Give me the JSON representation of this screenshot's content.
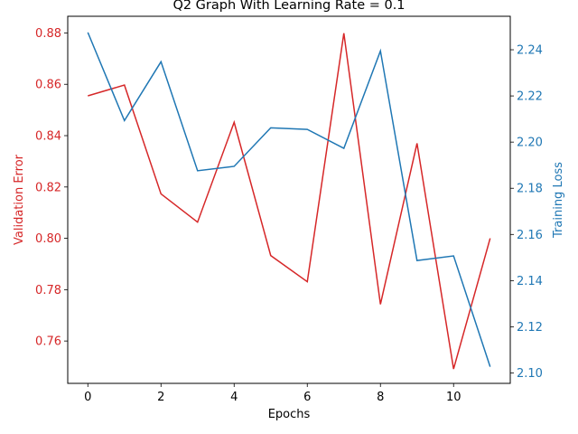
{
  "chart_data": {
    "type": "line",
    "title": "Q2 Graph With Learning Rate = 0.1",
    "xlabel": "Epochs",
    "xlim": [
      -0.55,
      11.55
    ],
    "xticks": [
      0,
      2,
      4,
      6,
      8,
      10
    ],
    "left_axis": {
      "label": "Validation Error",
      "color": "#d62728",
      "ylim": [
        0.7435,
        0.8865
      ],
      "ticks": [
        "0.76",
        "0.78",
        "0.80",
        "0.82",
        "0.84",
        "0.86",
        "0.88"
      ],
      "tick_values": [
        0.76,
        0.78,
        0.8,
        0.82,
        0.84,
        0.86,
        0.88
      ]
    },
    "right_axis": {
      "label": "Training Loss",
      "color": "#1f77b4",
      "ylim": [
        2.0955,
        2.2545
      ],
      "ticks": [
        "2.10",
        "2.12",
        "2.14",
        "2.16",
        "2.18",
        "2.20",
        "2.22",
        "2.24"
      ],
      "tick_values": [
        2.1,
        2.12,
        2.14,
        2.16,
        2.18,
        2.2,
        2.22,
        2.24
      ]
    },
    "x": [
      0,
      1,
      2,
      3,
      4,
      5,
      6,
      7,
      8,
      9,
      10,
      11
    ],
    "series": [
      {
        "axis": "left",
        "color": "#d62728",
        "values": [
          0.8555,
          0.8597,
          0.8173,
          0.8063,
          0.8452,
          0.7933,
          0.7831,
          0.8799,
          0.7743,
          0.837,
          0.7491,
          0.8
        ]
      },
      {
        "axis": "right",
        "color": "#1f77b4",
        "values": [
          2.2475,
          2.2093,
          2.2348,
          2.1876,
          2.1895,
          2.2062,
          2.2055,
          2.1973,
          2.2395,
          2.1487,
          2.1507,
          2.1027
        ]
      }
    ]
  }
}
